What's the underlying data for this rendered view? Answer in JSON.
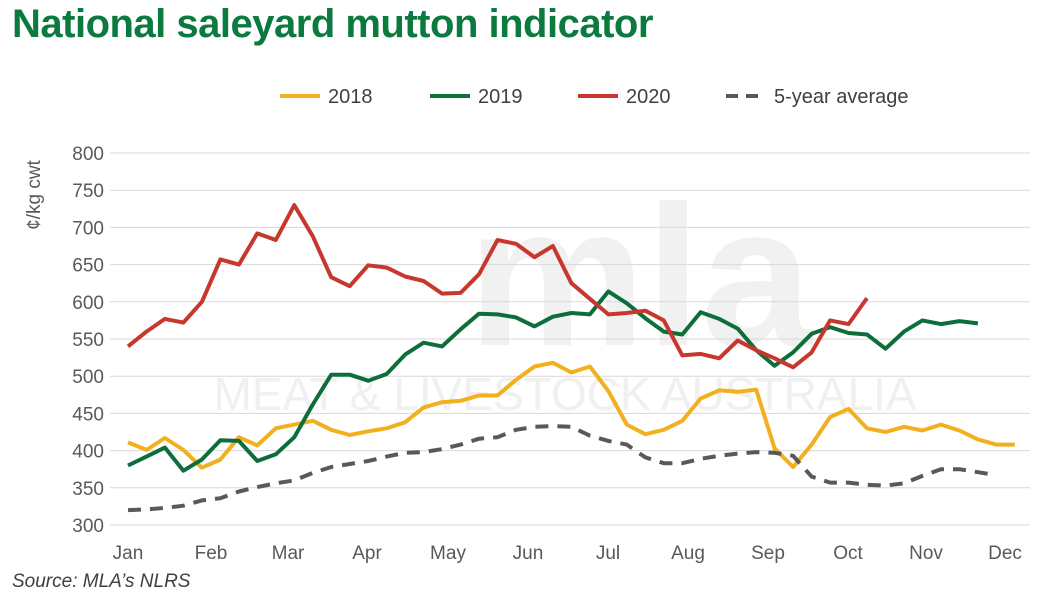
{
  "title": "National saleyard mutton indicator",
  "source": "Source: MLA’s NLRS",
  "watermark": {
    "logo": "mla",
    "text": "MEAT & LIVESTOCK AUSTRALIA"
  },
  "chart_data": {
    "type": "line",
    "title": "National saleyard mutton indicator",
    "ylabel": "¢/kg cwt",
    "xlabel": "",
    "ylim": [
      300,
      800
    ],
    "yticks": [
      "300",
      "350",
      "400",
      "450",
      "500",
      "550",
      "600",
      "650",
      "700",
      "750",
      "800"
    ],
    "xticks": [
      "Jan",
      "Feb",
      "Mar",
      "Apr",
      "May",
      "Jun",
      "Jul",
      "Aug",
      "Sep",
      "Oct",
      "Nov",
      "Dec"
    ],
    "grid": true,
    "legend_position": "top",
    "series": [
      {
        "name": "2018",
        "color": "#F2B01E",
        "dash": false,
        "values": [
          411,
          401,
          417,
          401,
          377,
          388,
          418,
          407,
          430,
          435,
          440,
          428,
          421,
          426,
          430,
          438,
          458,
          465,
          467,
          474,
          474,
          495,
          513,
          518,
          505,
          513,
          480,
          435,
          422,
          428,
          440,
          470,
          481,
          479,
          482,
          403,
          378,
          408,
          445,
          456,
          430,
          425,
          432,
          427,
          435,
          427,
          415,
          408,
          408
        ]
      },
      {
        "name": "2019",
        "color": "#0E6E3B",
        "dash": false,
        "values": [
          380,
          392,
          404,
          373,
          388,
          414,
          413,
          386,
          395,
          418,
          462,
          502,
          502,
          494,
          503,
          529,
          545,
          540,
          563,
          584,
          583,
          579,
          567,
          580,
          585,
          583,
          614,
          598,
          578,
          560,
          556,
          586,
          577,
          564,
          535,
          514,
          532,
          557,
          566,
          558,
          556,
          537,
          560,
          575,
          570,
          574,
          571
        ]
      },
      {
        "name": "2020",
        "color": "#C8372D",
        "dash": false,
        "values": [
          540,
          560,
          577,
          572,
          600,
          657,
          650,
          692,
          683,
          730,
          688,
          633,
          621,
          649,
          646,
          634,
          628,
          611,
          612,
          637,
          683,
          678,
          660,
          675,
          625,
          604,
          583,
          585,
          588,
          575,
          528,
          530,
          524,
          548,
          535,
          524,
          512,
          532,
          575,
          570,
          605
        ]
      },
      {
        "name": "5-year average",
        "color": "#595959",
        "dash": true,
        "values": [
          320,
          321,
          323,
          326,
          333,
          336,
          345,
          351,
          356,
          360,
          370,
          378,
          382,
          386,
          392,
          397,
          398,
          402,
          408,
          416,
          418,
          428,
          432,
          433,
          432,
          420,
          413,
          408,
          391,
          383,
          383,
          389,
          393,
          396,
          398,
          397,
          393,
          365,
          357,
          357,
          354,
          353,
          356,
          366,
          375,
          375,
          371,
          367
        ]
      }
    ]
  }
}
